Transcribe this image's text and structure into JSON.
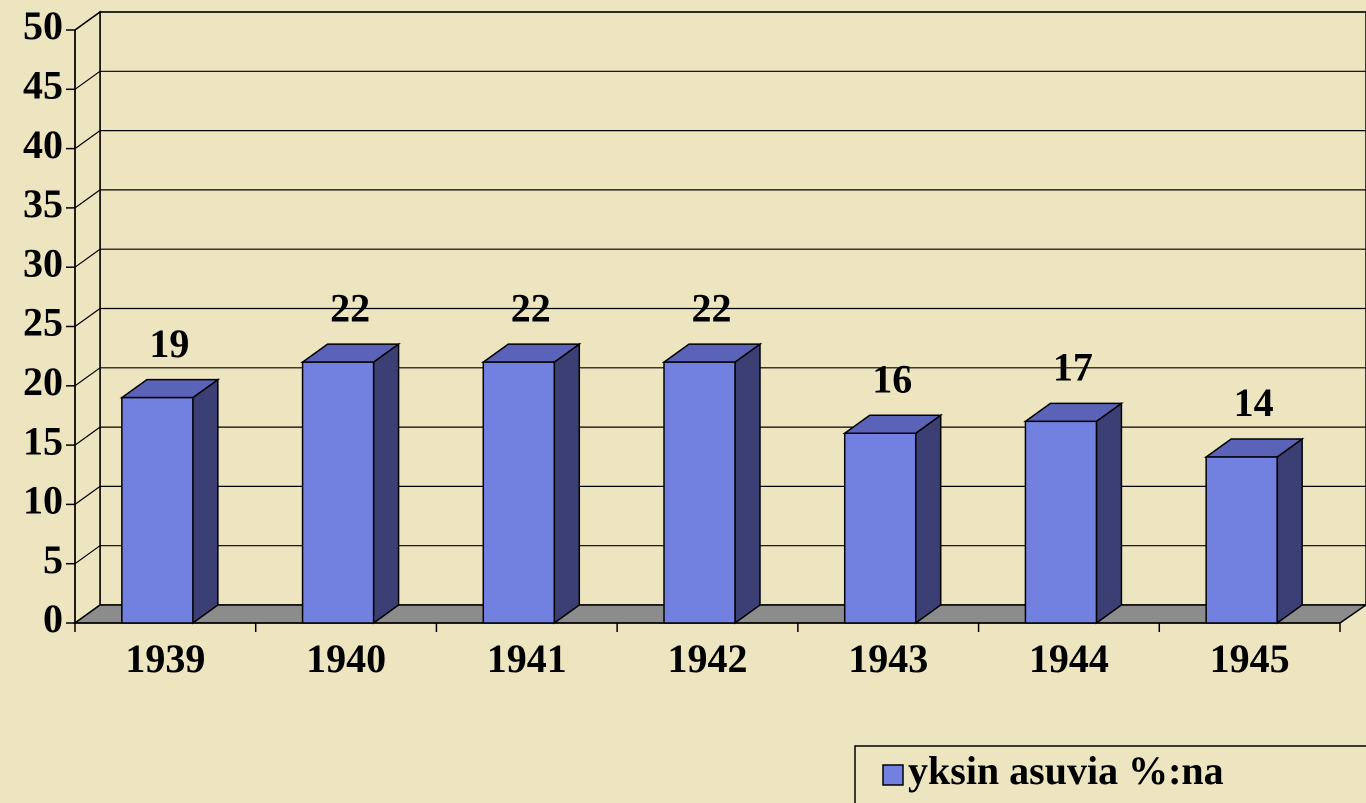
{
  "chart_data": {
    "type": "bar3d",
    "categories": [
      "1939",
      "1940",
      "1941",
      "1942",
      "1943",
      "1944",
      "1945"
    ],
    "series": [
      {
        "name": "yksin asuvia %:na",
        "color": "#7280e0",
        "values": [
          19,
          22,
          22,
          22,
          16,
          17,
          14
        ]
      }
    ],
    "ylim": [
      0,
      50
    ],
    "yticks": [
      0,
      5,
      10,
      15,
      20,
      25,
      30,
      35,
      40,
      45,
      50
    ],
    "grid": true,
    "legend": "bottom-right"
  }
}
